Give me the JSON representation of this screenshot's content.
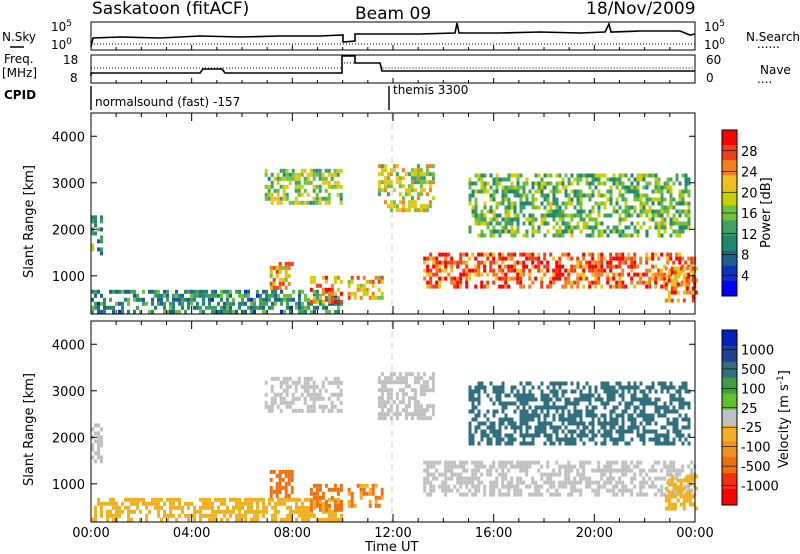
{
  "header": {
    "station": "Saskatoon (fitACF)",
    "beam": "Beam 09",
    "date": "18/Nov/2009"
  },
  "strip_labels": {
    "nsky": "N.Sky",
    "nsearch": "N.Search",
    "freq": "Freq.",
    "freq_unit": "[MHz]",
    "nave": "Nave",
    "cpid": "CPID",
    "dots": "......",
    "dots_short": "...."
  },
  "strip_ticks": {
    "noise_left": [
      "10^5",
      "10^0"
    ],
    "noise_right": [
      "10^5",
      "10^0"
    ],
    "freq_left": [
      "18",
      "8"
    ],
    "nave_right": [
      "60",
      "0"
    ]
  },
  "cpid_segments": [
    {
      "label": "normalsound (fast) -157"
    },
    {
      "label": "themis 3300"
    }
  ],
  "axes": {
    "ylabel": "Slant Range [km]",
    "yticks": [
      "4000",
      "3000",
      "2000",
      "1000"
    ],
    "xticks": [
      "00:00",
      "04:00",
      "08:00",
      "12:00",
      "16:00",
      "20:00",
      "00:00"
    ],
    "xlabel": "Time UT"
  },
  "chart_data": [
    {
      "type": "heatmap",
      "panel": "power",
      "x_range_hours": [
        0,
        24
      ],
      "y_range_km": [
        180,
        4500
      ],
      "colorbar": {
        "label": "Power [dB]",
        "ticks": [
          "28",
          "24",
          "20",
          "16",
          "12",
          "8",
          "4"
        ],
        "colors": [
          "#ff0000",
          "#f04018",
          "#f08020",
          "#f0c020",
          "#c8d000",
          "#70c040",
          "#40a060",
          "#208870",
          "#206090",
          "#1030c0",
          "#0000ff"
        ]
      },
      "regions": [
        {
          "t": [
            0.0,
            0.4
          ],
          "r": [
            1500,
            2300
          ],
          "level": 12
        },
        {
          "t": [
            0.0,
            10.0
          ],
          "r": [
            200,
            700
          ],
          "level": 10
        },
        {
          "t": [
            6.9,
            9.9
          ],
          "r": [
            2600,
            3300
          ],
          "level": 16
        },
        {
          "t": [
            7.1,
            8.0
          ],
          "r": [
            700,
            1300
          ],
          "level": 22
        },
        {
          "t": [
            8.7,
            10.0
          ],
          "r": [
            400,
            1000
          ],
          "level": 24
        },
        {
          "t": [
            10.2,
            11.6
          ],
          "r": [
            500,
            1000
          ],
          "level": 22
        },
        {
          "t": [
            11.4,
            13.6
          ],
          "r": [
            2400,
            3400
          ],
          "level": 18
        },
        {
          "t": [
            13.2,
            24.0
          ],
          "r": [
            800,
            1500
          ],
          "level": 26
        },
        {
          "t": [
            15.0,
            23.8
          ],
          "r": [
            1900,
            3200
          ],
          "level": 14
        },
        {
          "t": [
            22.8,
            24.0
          ],
          "r": [
            500,
            1200
          ],
          "level": 24
        }
      ]
    },
    {
      "type": "heatmap",
      "panel": "velocity",
      "x_range_hours": [
        0,
        24
      ],
      "y_range_km": [
        180,
        4500
      ],
      "colorbar": {
        "label": "Velocity [m s^-1]",
        "ticks": [
          "1000",
          "500",
          "100",
          "25",
          "-25",
          "-100",
          "-500",
          "-1000"
        ],
        "colors": [
          "#0020c0",
          "#204090",
          "#307080",
          "#40a040",
          "#60c030",
          "#c0c0c0",
          "#f0b020",
          "#f09020",
          "#f07010",
          "#f03010",
          "#ff0000"
        ]
      },
      "regions": [
        {
          "t": [
            0.0,
            0.4
          ],
          "r": [
            1500,
            2300
          ],
          "level": 0
        },
        {
          "t": [
            0.0,
            10.0
          ],
          "r": [
            200,
            700
          ],
          "level": -80
        },
        {
          "t": [
            6.9,
            9.9
          ],
          "r": [
            2600,
            3300
          ],
          "level": 0
        },
        {
          "t": [
            7.1,
            8.0
          ],
          "r": [
            700,
            1300
          ],
          "level": -200
        },
        {
          "t": [
            8.7,
            10.0
          ],
          "r": [
            400,
            1000
          ],
          "level": -150
        },
        {
          "t": [
            10.2,
            11.6
          ],
          "r": [
            500,
            1000
          ],
          "level": -120
        },
        {
          "t": [
            11.4,
            13.6
          ],
          "r": [
            2400,
            3400
          ],
          "level": 0
        },
        {
          "t": [
            13.2,
            24.0
          ],
          "r": [
            800,
            1500
          ],
          "level": 0
        },
        {
          "t": [
            15.0,
            23.8
          ],
          "r": [
            1900,
            3200
          ],
          "level": 120
        },
        {
          "t": [
            22.8,
            24.0
          ],
          "r": [
            500,
            1200
          ],
          "level": -60
        }
      ]
    }
  ]
}
